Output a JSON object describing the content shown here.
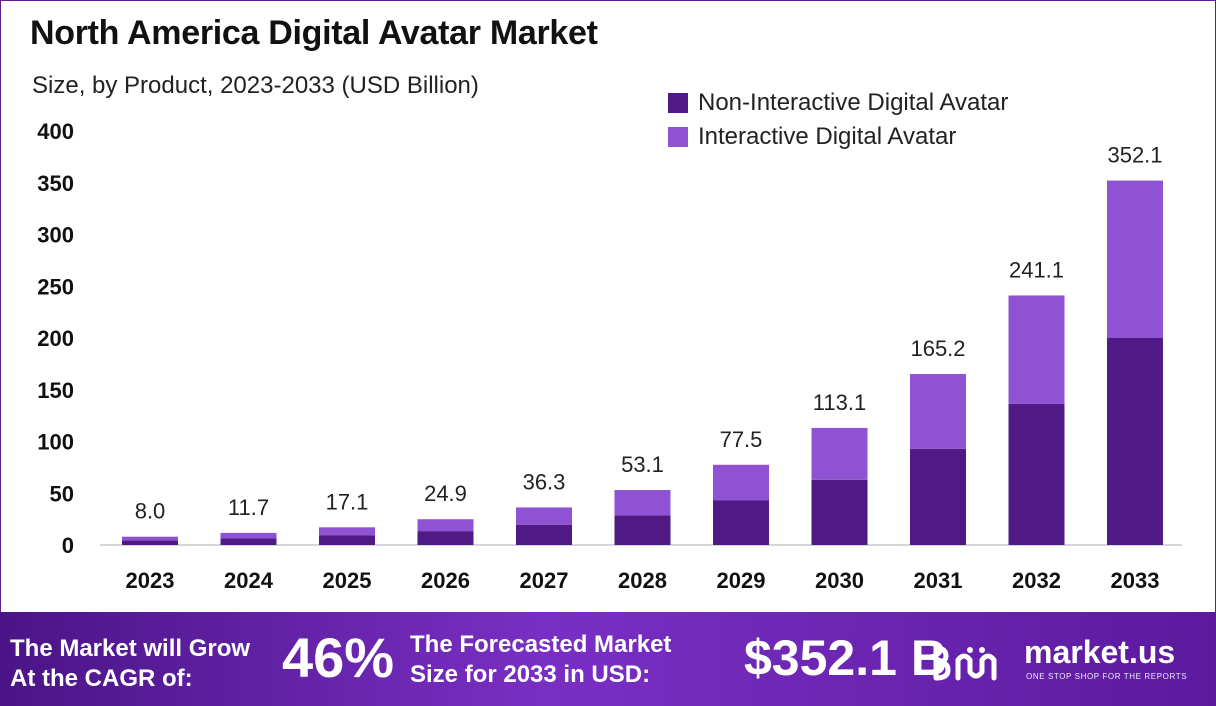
{
  "colors": {
    "non_interactive": "#4f1a86",
    "interactive": "#8e52d2",
    "title": "#111111",
    "footer_start": "#4a1486",
    "footer_end": "#7a2fc4"
  },
  "chart_data": {
    "type": "bar",
    "stacked": true,
    "title": "North America Digital Avatar Market",
    "subtitle": "Size, by Product, 2023-2033 (USD Billion)",
    "categories": [
      "2023",
      "2024",
      "2025",
      "2026",
      "2027",
      "2028",
      "2029",
      "2030",
      "2031",
      "2032",
      "2033"
    ],
    "series": [
      {
        "name": "Non-Interactive Digital Avatar",
        "values": [
          4.3,
          6.3,
          9.2,
          13.4,
          19.6,
          28.7,
          43.0,
          63.0,
          93.0,
          136.5,
          200.0
        ]
      },
      {
        "name": "Interactive Digital Avatar",
        "values": [
          3.7,
          5.4,
          7.9,
          11.5,
          16.7,
          24.4,
          34.5,
          50.1,
          72.2,
          104.6,
          152.1
        ]
      }
    ],
    "totals": [
      "8.0",
      "11.7",
      "17.1",
      "24.9",
      "36.3",
      "53.1",
      "77.5",
      "113.1",
      "165.2",
      "241.1",
      "352.1"
    ],
    "yticks": [
      "0",
      "50",
      "100",
      "150",
      "200",
      "250",
      "300",
      "350",
      "400"
    ],
    "ylim": [
      0,
      400
    ],
    "grid": false,
    "legend_position": "top-right"
  },
  "footer": {
    "growth_line1": "The Market will Grow",
    "growth_line2": "At the CAGR of:",
    "cagr": "46%",
    "forecast_line1": "The Forecasted Market",
    "forecast_line2": "Size for 2033 in USD:",
    "forecast_value": "$352.1 B",
    "brand_name": "market.us",
    "brand_tagline": "ONE STOP SHOP FOR THE REPORTS"
  }
}
